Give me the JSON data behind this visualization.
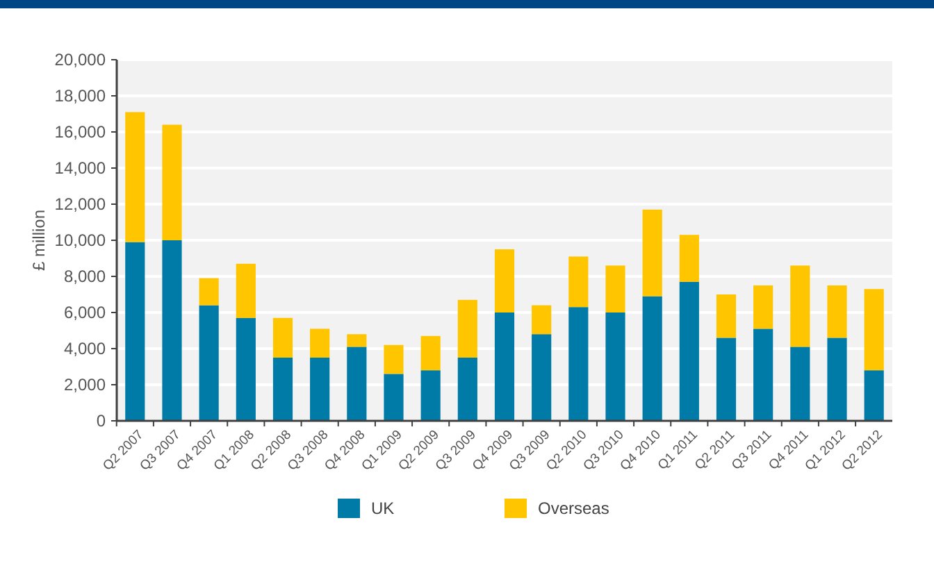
{
  "chart_data": {
    "type": "bar",
    "stacked": true,
    "ylabel": "£ million",
    "categories": [
      "Q2 2007",
      "Q3 2007",
      "Q4 2007",
      "Q1 2008",
      "Q2 2008",
      "Q3 2008",
      "Q4 2008",
      "Q1 2009",
      "Q2 2009",
      "Q3 2009",
      "Q4 2009",
      "Q3 2009",
      "Q2 2010",
      "Q3 2010",
      "Q4 2010",
      "Q1 2011",
      "Q2 2011",
      "Q3 2011",
      "Q4 2011",
      "Q1 2012",
      "Q2 2012"
    ],
    "series": [
      {
        "name": "UK",
        "color": "#007ba7",
        "values": [
          9900,
          10000,
          6400,
          5700,
          3500,
          3500,
          4100,
          2600,
          2800,
          3500,
          6000,
          4800,
          6300,
          6000,
          6900,
          7700,
          4600,
          5100,
          4100,
          4600,
          2800
        ]
      },
      {
        "name": "Overseas",
        "color": "#ffc600",
        "values": [
          7200,
          6400,
          1500,
          3000,
          2200,
          1600,
          700,
          1600,
          1900,
          3200,
          3500,
          1600,
          2800,
          2600,
          4800,
          2600,
          2400,
          2400,
          4500,
          2900,
          4500
        ]
      }
    ],
    "ylim": [
      0,
      20000
    ],
    "yticks": [
      {
        "value": 0,
        "label": "0"
      },
      {
        "value": 2000,
        "label": "2,000"
      },
      {
        "value": 4000,
        "label": "4,000"
      },
      {
        "value": 6000,
        "label": "6,000"
      },
      {
        "value": 8000,
        "label": "8,000"
      },
      {
        "value": 10000,
        "label": "10,000"
      },
      {
        "value": 12000,
        "label": "12,000"
      },
      {
        "value": 14000,
        "label": "14,000"
      },
      {
        "value": 16000,
        "label": "16,000"
      },
      {
        "value": 18000,
        "label": "18,000"
      },
      {
        "value": 20000,
        "label": "20,000"
      }
    ],
    "grid": "y",
    "legend": "bottom"
  }
}
